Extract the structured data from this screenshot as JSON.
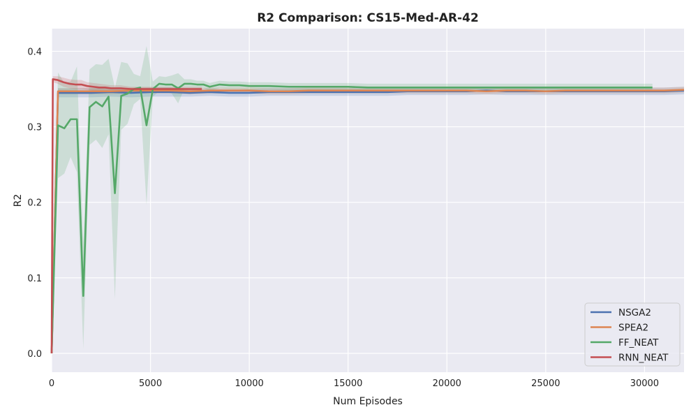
{
  "chart_data": {
    "type": "line",
    "title": "R2 Comparison: CS15-Med-AR-42",
    "xlabel": "Num Episodes",
    "ylabel": "R2",
    "xlim": [
      0,
      32000
    ],
    "ylim": [
      -0.025,
      0.43
    ],
    "xticks": [
      0,
      5000,
      10000,
      15000,
      20000,
      25000,
      30000
    ],
    "yticks": [
      0.0,
      0.1,
      0.2,
      0.3,
      0.4
    ],
    "ytick_labels": [
      "0.0",
      "0.1",
      "0.2",
      "0.3",
      "0.4"
    ],
    "xtick_labels": [
      "0",
      "5000",
      "10000",
      "15000",
      "20000",
      "25000",
      "30000"
    ],
    "grid": true,
    "legend_position": "bottom-right",
    "series": [
      {
        "name": "NSGA2",
        "color": "#4c72b0",
        "x": [
          0,
          320,
          1000,
          2000,
          3000,
          4000,
          5000,
          6000,
          7000,
          8000,
          9000,
          10000,
          11000,
          12000,
          13000,
          14000,
          15000,
          16000,
          17000,
          18000,
          19000,
          20000,
          21000,
          22000,
          23000,
          24000,
          25000,
          26000,
          27000,
          28000,
          29000,
          30000,
          31000,
          32000
        ],
        "y": [
          0.0,
          0.345,
          0.345,
          0.345,
          0.346,
          0.345,
          0.346,
          0.346,
          0.345,
          0.346,
          0.345,
          0.345,
          0.346,
          0.346,
          0.346,
          0.346,
          0.346,
          0.346,
          0.346,
          0.347,
          0.347,
          0.347,
          0.347,
          0.348,
          0.347,
          0.347,
          0.347,
          0.347,
          0.347,
          0.347,
          0.347,
          0.347,
          0.347,
          0.348
        ],
        "band": [
          0.006,
          0.006,
          0.006,
          0.006,
          0.006,
          0.006,
          0.006,
          0.006,
          0.005,
          0.005,
          0.005,
          0.005,
          0.005,
          0.005,
          0.005,
          0.005,
          0.005,
          0.005,
          0.005,
          0.005,
          0.005,
          0.005,
          0.005,
          0.005,
          0.005,
          0.005,
          0.005,
          0.005,
          0.005,
          0.005,
          0.005,
          0.005,
          0.005,
          0.005
        ]
      },
      {
        "name": "SPEA2",
        "color": "#dd8452",
        "x": [
          0,
          320,
          1000,
          2000,
          3000,
          4000,
          5000,
          6000,
          7000,
          8000,
          9000,
          10000,
          11000,
          12000,
          13000,
          14000,
          15000,
          16000,
          17000,
          18000,
          19000,
          20000,
          21000,
          22000,
          23000,
          24000,
          25000,
          26000,
          27000,
          28000,
          29000,
          30000,
          31000,
          32000
        ],
        "y": [
          0.0,
          0.347,
          0.347,
          0.347,
          0.347,
          0.348,
          0.348,
          0.348,
          0.347,
          0.348,
          0.348,
          0.348,
          0.347,
          0.347,
          0.348,
          0.348,
          0.348,
          0.348,
          0.348,
          0.348,
          0.348,
          0.348,
          0.348,
          0.347,
          0.348,
          0.348,
          0.347,
          0.348,
          0.348,
          0.348,
          0.348,
          0.348,
          0.348,
          0.349
        ],
        "band": [
          0.004,
          0.004,
          0.004,
          0.004,
          0.004,
          0.004,
          0.004,
          0.004,
          0.004,
          0.004,
          0.004,
          0.004,
          0.004,
          0.004,
          0.004,
          0.004,
          0.004,
          0.004,
          0.004,
          0.004,
          0.004,
          0.004,
          0.004,
          0.004,
          0.004,
          0.004,
          0.004,
          0.004,
          0.004,
          0.004,
          0.004,
          0.004,
          0.004,
          0.004
        ]
      },
      {
        "name": "FF_NEAT",
        "color": "#55a868",
        "x": [
          0,
          320,
          640,
          960,
          1280,
          1600,
          1920,
          2240,
          2560,
          2880,
          3200,
          3520,
          3840,
          4160,
          4480,
          4800,
          5120,
          5440,
          5760,
          6080,
          6400,
          6720,
          7040,
          7360,
          7680,
          8000,
          8500,
          9000,
          9500,
          10000,
          11000,
          12000,
          13000,
          14000,
          15000,
          16000,
          17000,
          18000,
          19000,
          20000,
          21000,
          22000,
          23000,
          24000,
          25000,
          26000,
          27000,
          28000,
          29000,
          30400
        ],
        "y": [
          0.0,
          0.302,
          0.298,
          0.31,
          0.31,
          0.076,
          0.326,
          0.333,
          0.327,
          0.34,
          0.212,
          0.341,
          0.344,
          0.35,
          0.352,
          0.302,
          0.35,
          0.357,
          0.356,
          0.356,
          0.351,
          0.357,
          0.357,
          0.356,
          0.356,
          0.353,
          0.356,
          0.355,
          0.355,
          0.354,
          0.354,
          0.353,
          0.353,
          0.353,
          0.353,
          0.352,
          0.352,
          0.352,
          0.352,
          0.352,
          0.352,
          0.352,
          0.352,
          0.352,
          0.352,
          0.352,
          0.352,
          0.352,
          0.352,
          0.352
        ],
        "band": [
          0.0,
          0.07,
          0.06,
          0.05,
          0.07,
          0.07,
          0.05,
          0.05,
          0.055,
          0.05,
          0.14,
          0.045,
          0.04,
          0.02,
          0.015,
          0.105,
          0.01,
          0.01,
          0.01,
          0.012,
          0.02,
          0.006,
          0.006,
          0.005,
          0.005,
          0.005,
          0.005,
          0.005,
          0.005,
          0.005,
          0.005,
          0.005,
          0.005,
          0.005,
          0.005,
          0.005,
          0.005,
          0.005,
          0.005,
          0.005,
          0.005,
          0.005,
          0.005,
          0.005,
          0.005,
          0.005,
          0.005,
          0.005,
          0.005,
          0.005
        ]
      },
      {
        "name": "RNN_NEAT",
        "color": "#c44e52",
        "x": [
          0,
          60,
          300,
          600,
          900,
          1200,
          1500,
          1800,
          2100,
          2400,
          2700,
          3000,
          3500,
          4000,
          4500,
          5000,
          5500,
          6000,
          6500,
          7000,
          7600
        ],
        "y": [
          0.0,
          0.363,
          0.362,
          0.359,
          0.357,
          0.356,
          0.356,
          0.354,
          0.353,
          0.352,
          0.352,
          0.351,
          0.351,
          0.35,
          0.35,
          0.35,
          0.35,
          0.35,
          0.35,
          0.35,
          0.35
        ],
        "band": [
          0.0,
          0.004,
          0.005,
          0.006,
          0.006,
          0.006,
          0.006,
          0.005,
          0.005,
          0.005,
          0.004,
          0.004,
          0.004,
          0.003,
          0.003,
          0.003,
          0.003,
          0.003,
          0.003,
          0.003,
          0.003
        ]
      }
    ]
  }
}
